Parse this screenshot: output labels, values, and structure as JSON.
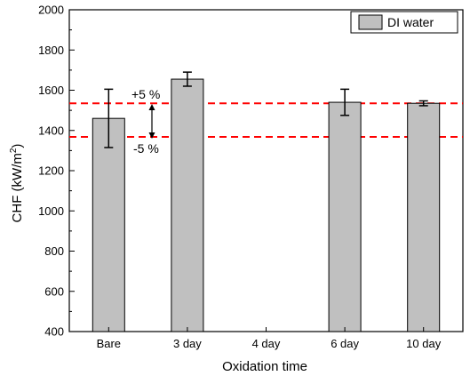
{
  "chart_data": {
    "type": "bar",
    "categories": [
      "Bare",
      "3 day",
      "4 day",
      "6 day",
      "10 day"
    ],
    "series": [
      {
        "name": "DI water",
        "values": [
          1460,
          1655,
          null,
          1540,
          1535
        ],
        "errors": [
          145,
          35,
          null,
          65,
          12
        ],
        "color": "#c0c0c0"
      }
    ],
    "xlabel": "Oxidation time",
    "ylabel_main": "CHF (kW/m",
    "ylabel_sup": "2",
    "ylabel_close": ")",
    "ylim": [
      400,
      2000
    ],
    "yticks": [
      400,
      600,
      800,
      1000,
      1200,
      1400,
      1600,
      1800,
      2000
    ],
    "reference_lines": [
      {
        "label": "+5 %",
        "value": 1535,
        "color": "#ff0000",
        "style": "dashed"
      },
      {
        "label": "-5 %",
        "value": 1368,
        "color": "#ff0000",
        "style": "dashed"
      }
    ],
    "legend_position": "top-right",
    "grid": false
  }
}
